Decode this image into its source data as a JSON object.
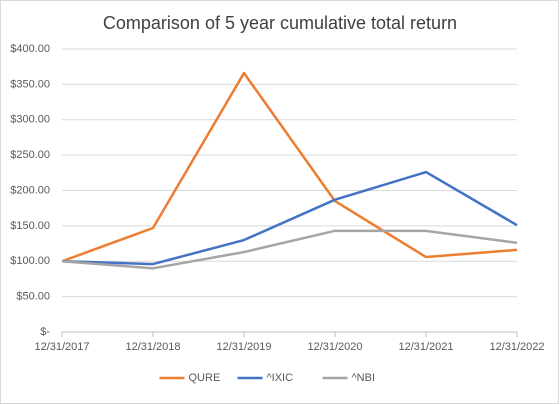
{
  "chart_data": {
    "type": "line",
    "title": "Comparison of 5 year cumulative total return",
    "categories": [
      "12/31/2017",
      "12/31/2018",
      "12/31/2019",
      "12/31/2020",
      "12/31/2021",
      "12/31/2022"
    ],
    "series": [
      {
        "name": "QURE",
        "color": "#ed7d31",
        "values": [
          100,
          147,
          366,
          185,
          106,
          116
        ]
      },
      {
        "name": "^IXIC",
        "color": "#4472c4",
        "values": [
          100,
          96,
          130,
          187,
          226,
          151
        ]
      },
      {
        "name": "^NBI",
        "color": "#a5a5a5",
        "values": [
          100,
          90,
          113,
          143,
          143,
          126
        ]
      }
    ],
    "ylim": [
      0,
      400
    ],
    "yticks": [
      {
        "value": 0,
        "label": "$-"
      },
      {
        "value": 50,
        "label": "$50.00"
      },
      {
        "value": 100,
        "label": "$100.00"
      },
      {
        "value": 150,
        "label": "$150.00"
      },
      {
        "value": 200,
        "label": "$200.00"
      },
      {
        "value": 250,
        "label": "$250.00"
      },
      {
        "value": 300,
        "label": "$300.00"
      },
      {
        "value": 350,
        "label": "$350.00"
      },
      {
        "value": 400,
        "label": "$400.00"
      }
    ],
    "grid": true,
    "legend": "bottom"
  }
}
